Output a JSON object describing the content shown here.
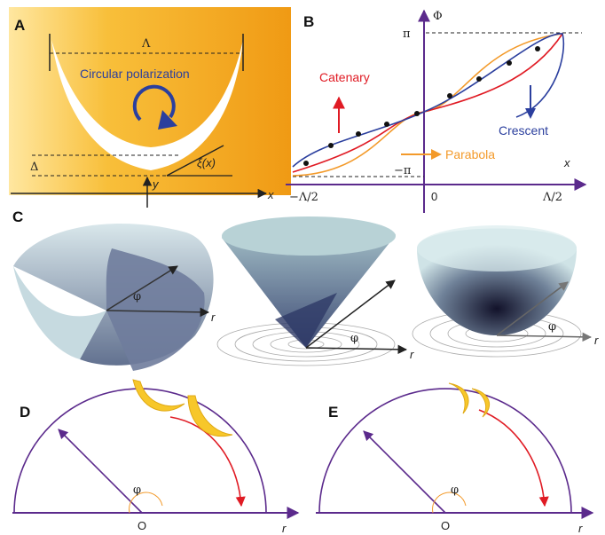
{
  "colors": {
    "panel_a_gold": "#f3a51c",
    "panel_a_light": "#ffe08a",
    "purple": "#5b2a8c",
    "red": "#e01b24",
    "orange": "#f39a2a",
    "blue": "#2b3f9e",
    "crescent_yellow": "#f7c72a"
  },
  "panel_a": {
    "label": "A",
    "lambda": "Λ",
    "title": "Circular polarization",
    "delta": "Δ",
    "xi": "ξ(x)",
    "y": "y",
    "x": "x"
  },
  "panel_b": {
    "label": "B",
    "phi_axis": "Φ",
    "pi": "π",
    "minus_pi": "−π",
    "x_axis": "x",
    "zero": "0",
    "x_min": "−Λ/2",
    "x_max": "Λ/2",
    "catenary": "Catenary",
    "parabola": "Parabola",
    "crescent": "Crescent"
  },
  "panel_c": {
    "label": "C",
    "phi": "φ",
    "r": "r"
  },
  "panel_d": {
    "label": "D",
    "phi": "φ",
    "origin": "O",
    "r": "r"
  },
  "panel_e": {
    "label": "E",
    "phi": "φ",
    "origin": "O",
    "r": "r"
  }
}
